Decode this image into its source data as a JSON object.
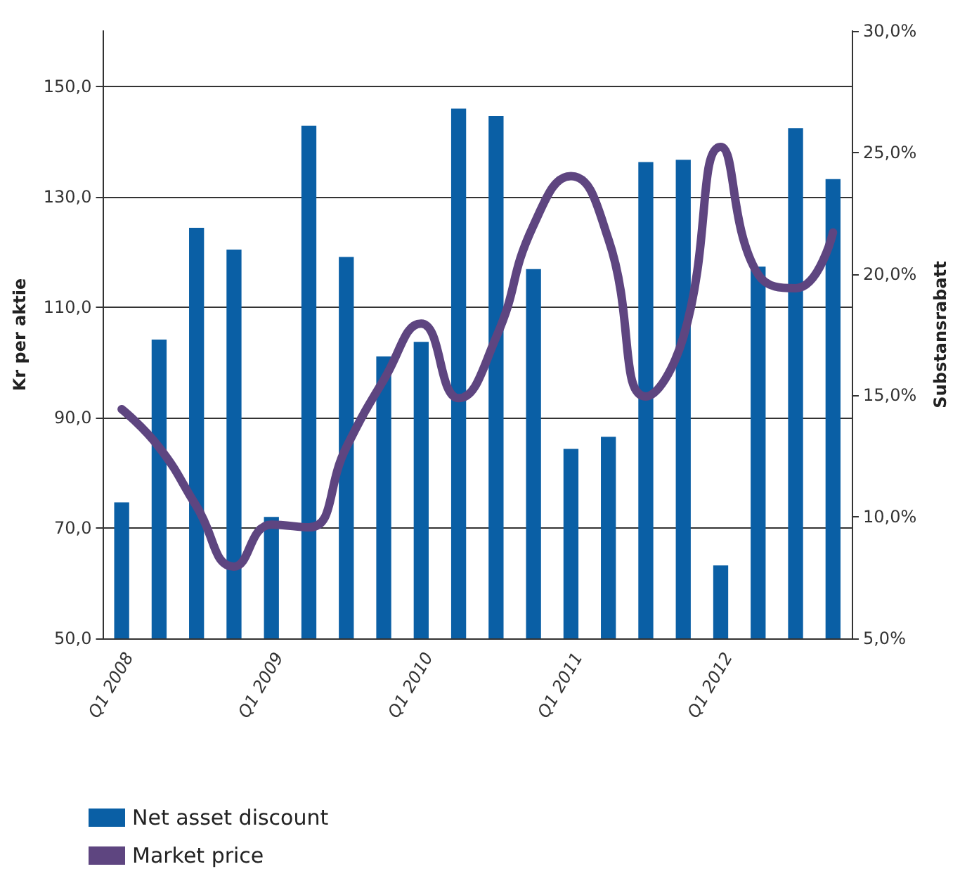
{
  "chart_data": {
    "type": "bar",
    "ylabel": "Kr per aktie",
    "y2label": "Substansrabatt",
    "categories": [
      "Q1 2008",
      null,
      null,
      null,
      "Q1 2009",
      null,
      null,
      null,
      "Q1 2010",
      null,
      null,
      null,
      "Q1 2011",
      null,
      null,
      null,
      "Q1 2012",
      null,
      null,
      null
    ],
    "series": [
      {
        "name": "Net asset discount",
        "axis": "y2",
        "color": "#0a5fa5",
        "values": [
          10.6,
          17.3,
          21.9,
          21.0,
          10.0,
          26.1,
          20.7,
          16.6,
          17.2,
          26.8,
          26.5,
          20.2,
          12.8,
          13.3,
          24.6,
          24.7,
          8.0,
          20.3,
          26.0,
          23.9
        ]
      },
      {
        "name": "Market price",
        "type": "line",
        "color": "#5e4580",
        "values": [
          91.5,
          84.6,
          73.9,
          63,
          70.6,
          70.1,
          84.6,
          96.8,
          107,
          93.5,
          104.5,
          124.8,
          133.7,
          122.3,
          93.8,
          104.5,
          139,
          115.9,
          113.4,
          123.5
        ]
      }
    ],
    "ylim": [
      50,
      160
    ],
    "yticks": [
      {
        "value": 50,
        "label": "50,0"
      },
      {
        "value": 70,
        "label": "70,0"
      },
      {
        "value": 90,
        "label": "90,0"
      },
      {
        "value": 110,
        "label": "110,0"
      },
      {
        "value": 130,
        "label": "130,0"
      },
      {
        "value": 150,
        "label": "150,0"
      }
    ],
    "y2lim": [
      5,
      30
    ],
    "y2ticks": [
      {
        "value": 5,
        "label": "5,0%"
      },
      {
        "value": 10,
        "label": "10,0%"
      },
      {
        "value": 15,
        "label": "15,0%"
      },
      {
        "value": 20,
        "label": "20,0%"
      },
      {
        "value": 25,
        "label": "25,0%"
      },
      {
        "value": 30,
        "label": "30,0%"
      }
    ],
    "grid": "y",
    "legend": "bottom left",
    "marker": "none",
    "line_style": "solid"
  }
}
